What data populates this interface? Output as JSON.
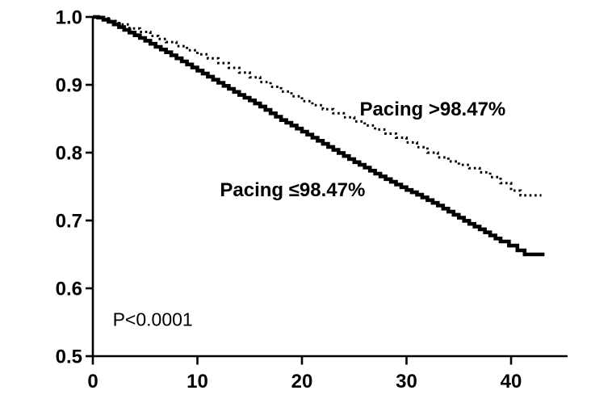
{
  "figure": {
    "background": "#ffffff",
    "line_color": "#000000"
  },
  "chart_data": {
    "type": "line",
    "subtype": "kaplan-meier-survival",
    "title": "",
    "xlabel": "",
    "ylabel": "",
    "xlim": [
      0,
      45.4
    ],
    "ylim": [
      0.5,
      1.0
    ],
    "grid": false,
    "legend_position": "inline-annotations",
    "x_ticks": [
      0,
      10,
      20,
      30,
      40
    ],
    "x_tick_labels": [
      "0",
      "10",
      "20",
      "30",
      "40"
    ],
    "y_ticks": [
      1.0,
      0.9,
      0.8,
      0.7,
      0.6,
      0.5
    ],
    "y_tick_labels": [
      "1.0",
      "0.9",
      "0.8",
      "0.7",
      "0.6",
      "0.5"
    ],
    "series": [
      {
        "name": "pacing-le-98-47",
        "label": "Pacing ≤98.47%",
        "style": "solid",
        "color": "#000000",
        "x": [
          0,
          0.5,
          1,
          1.5,
          2,
          3,
          4,
          5,
          6,
          7,
          8,
          9,
          10,
          11,
          12,
          13,
          14,
          15,
          16,
          17,
          18,
          19,
          20,
          21,
          22,
          23,
          24,
          25,
          26,
          27,
          28,
          29,
          30,
          31,
          32,
          33,
          34,
          35,
          36,
          37,
          38,
          39,
          39.8,
          40.6,
          41.3,
          43.2
        ],
        "y": [
          1.0,
          0.999,
          0.996,
          0.993,
          0.989,
          0.981,
          0.973,
          0.965,
          0.956,
          0.948,
          0.939,
          0.93,
          0.921,
          0.912,
          0.903,
          0.894,
          0.885,
          0.877,
          0.868,
          0.858,
          0.848,
          0.84,
          0.831,
          0.822,
          0.813,
          0.804,
          0.795,
          0.786,
          0.778,
          0.769,
          0.761,
          0.753,
          0.745,
          0.738,
          0.73,
          0.722,
          0.713,
          0.704,
          0.695,
          0.687,
          0.678,
          0.669,
          0.663,
          0.656,
          0.65,
          0.65
        ]
      },
      {
        "name": "pacing-gt-98-47",
        "label": "Pacing >98.47%",
        "style": "dotted",
        "color": "#000000",
        "x": [
          0,
          0.7,
          1.5,
          2.5,
          3.5,
          4.5,
          5.5,
          7,
          8,
          9,
          10,
          11,
          12,
          13,
          14,
          15,
          16,
          17,
          18,
          19,
          20,
          21,
          22,
          23,
          24,
          25,
          26,
          27,
          28,
          29,
          30,
          31,
          32,
          33,
          34,
          35,
          36,
          37,
          38,
          39,
          40,
          40.9,
          42.9
        ],
        "y": [
          1.0,
          0.998,
          0.994,
          0.989,
          0.983,
          0.978,
          0.972,
          0.963,
          0.957,
          0.951,
          0.945,
          0.939,
          0.932,
          0.925,
          0.918,
          0.911,
          0.904,
          0.897,
          0.89,
          0.883,
          0.876,
          0.87,
          0.864,
          0.858,
          0.852,
          0.846,
          0.84,
          0.834,
          0.828,
          0.822,
          0.815,
          0.808,
          0.8,
          0.793,
          0.787,
          0.782,
          0.777,
          0.771,
          0.764,
          0.755,
          0.744,
          0.737,
          0.737
        ]
      }
    ],
    "annotations": [
      {
        "text": "Pacing >98.47%",
        "x": 32.5,
        "y": 0.863,
        "bold": true,
        "anchor": "middle"
      },
      {
        "text": "Pacing ≤98.47%",
        "x": 19.1,
        "y": 0.744,
        "bold": true,
        "anchor": "middle"
      },
      {
        "text": "P<0.0001",
        "x": 1.9,
        "y": 0.554,
        "bold": false,
        "anchor": "start"
      }
    ]
  }
}
